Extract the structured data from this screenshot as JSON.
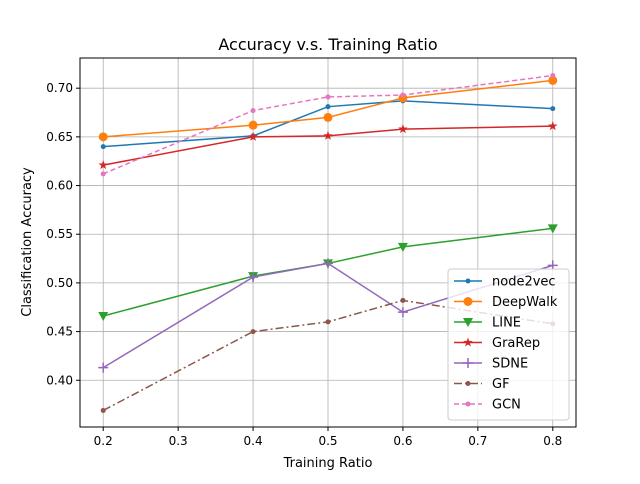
{
  "chart_data": {
    "type": "line",
    "title": "Accuracy v.s. Training Ratio",
    "xlabel": "Training Ratio",
    "ylabel": "Classification Accuracy",
    "xlim": [
      0.169,
      0.831
    ],
    "ylim": [
      0.352,
      0.731
    ],
    "xticks": [
      0.2,
      0.3,
      0.4,
      0.5,
      0.6,
      0.7,
      0.8
    ],
    "xtick_labels": [
      "0.2",
      "0.3",
      "0.4",
      "0.5",
      "0.6",
      "0.7",
      "0.8"
    ],
    "yticks": [
      0.4,
      0.45,
      0.5,
      0.55,
      0.6,
      0.65,
      0.7
    ],
    "ytick_labels": [
      "0.40",
      "0.45",
      "0.50",
      "0.55",
      "0.60",
      "0.65",
      "0.70"
    ],
    "grid": true,
    "legend_position": "lower-right",
    "x": [
      0.2,
      0.4,
      0.5,
      0.6,
      0.8
    ],
    "series": [
      {
        "name": "node2vec",
        "values": [
          0.64,
          0.651,
          0.681,
          0.687,
          0.679
        ],
        "color": "#1f77b4",
        "marker": "dot",
        "dash": ""
      },
      {
        "name": "DeepWalk",
        "values": [
          0.65,
          0.662,
          0.67,
          0.69,
          0.708
        ],
        "color": "#ff7f0e",
        "marker": "circle",
        "dash": ""
      },
      {
        "name": "LINE",
        "values": [
          0.466,
          0.507,
          0.52,
          0.537,
          0.556
        ],
        "color": "#2ca02c",
        "marker": "triangle-down",
        "dash": ""
      },
      {
        "name": "GraRep",
        "values": [
          0.621,
          0.65,
          0.651,
          0.658,
          0.661
        ],
        "color": "#d62728",
        "marker": "star",
        "dash": ""
      },
      {
        "name": "SDNE",
        "values": [
          0.413,
          0.506,
          0.52,
          0.47,
          0.518
        ],
        "color": "#9467bd",
        "marker": "plus",
        "dash": ""
      },
      {
        "name": "GF",
        "values": [
          0.369,
          0.45,
          0.46,
          0.482,
          0.458
        ],
        "color": "#8c564b",
        "marker": "dot",
        "dash": "8,3,2,3"
      },
      {
        "name": "GCN",
        "values": [
          0.612,
          0.677,
          0.691,
          0.693,
          0.713
        ],
        "color": "#e377c2",
        "marker": "dot",
        "dash": "5,3"
      }
    ]
  }
}
